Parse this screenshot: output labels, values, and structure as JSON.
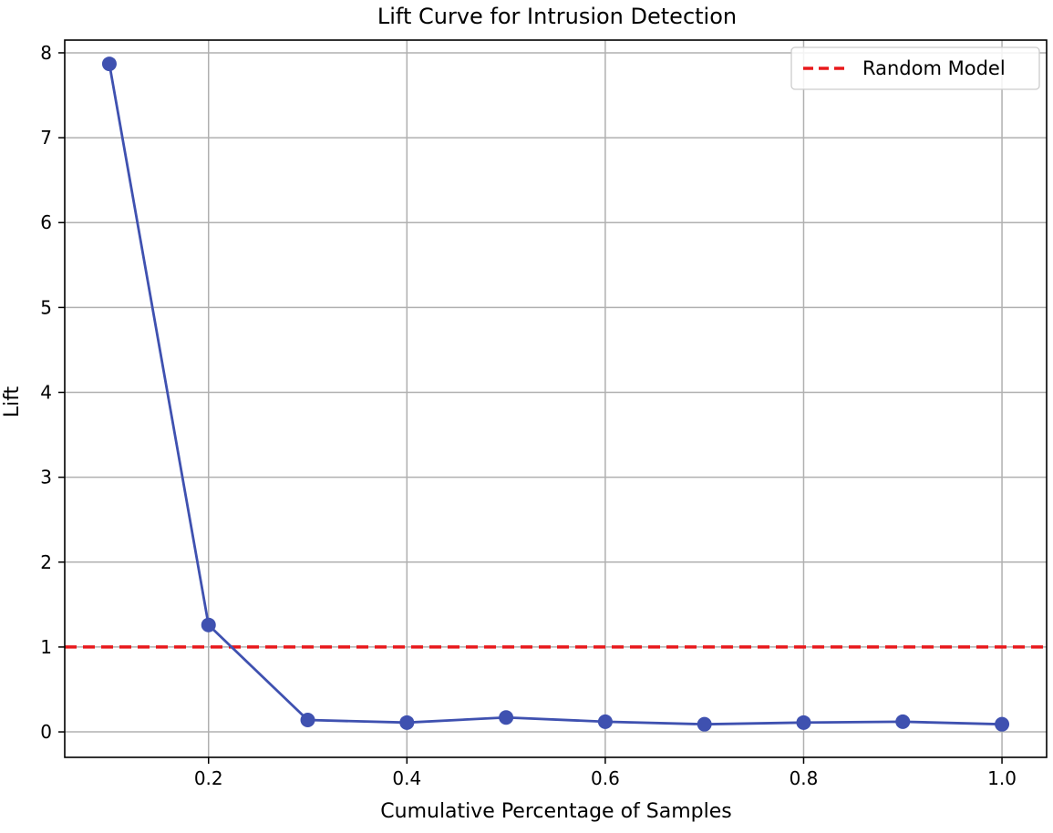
{
  "chart_data": {
    "type": "line",
    "title": "Lift Curve for Intrusion Detection",
    "xlabel": "Cumulative Percentage of Samples",
    "ylabel": "Lift",
    "xlim": [
      0.055,
      1.045
    ],
    "ylim": [
      -0.3,
      8.15
    ],
    "xticks": [
      0.2,
      0.4,
      0.6,
      0.8,
      1.0
    ],
    "xtick_labels": [
      "0.2",
      "0.4",
      "0.6",
      "0.8",
      "1.0"
    ],
    "yticks": [
      0,
      1,
      2,
      3,
      4,
      5,
      6,
      7,
      8
    ],
    "ytick_labels": [
      "0",
      "1",
      "2",
      "3",
      "4",
      "5",
      "6",
      "7",
      "8"
    ],
    "grid": true,
    "legend_position": "top-right",
    "series": [
      {
        "name": "Lift",
        "color": "#3f51b0",
        "marker": "circle",
        "x": [
          0.1,
          0.2,
          0.3,
          0.4,
          0.5,
          0.6,
          0.7,
          0.8,
          0.9,
          1.0
        ],
        "values": [
          7.87,
          1.26,
          0.14,
          0.11,
          0.17,
          0.12,
          0.09,
          0.11,
          0.12,
          0.09
        ]
      }
    ],
    "reference_lines": [
      {
        "name": "Random Model",
        "y": 1,
        "color": "#e8191c",
        "style": "dashed"
      }
    ]
  }
}
